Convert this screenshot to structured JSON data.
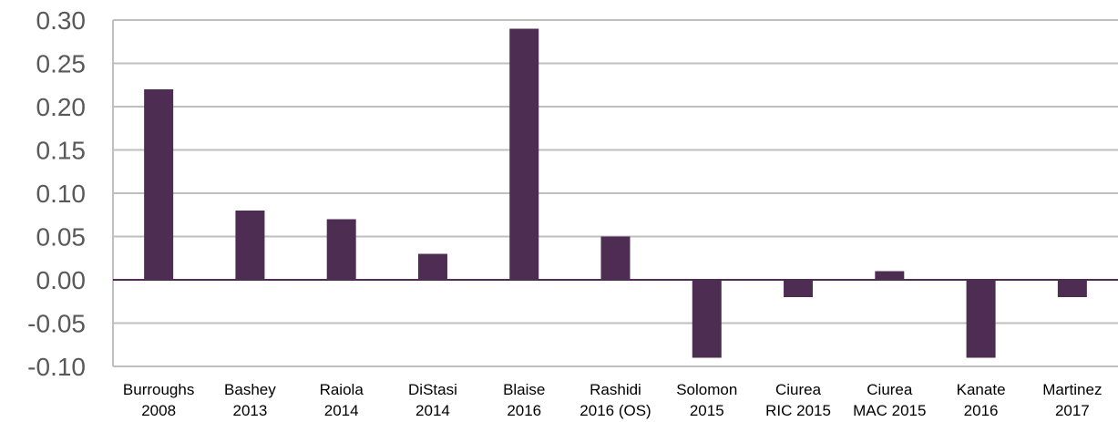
{
  "chart_data": {
    "type": "bar",
    "title": "",
    "xlabel": "",
    "ylabel": "",
    "categories": [
      [
        "Burroughs",
        "2008"
      ],
      [
        "Bashey",
        "2013"
      ],
      [
        "Raiola",
        "2014"
      ],
      [
        "DiStasi",
        "2014"
      ],
      [
        "Blaise",
        "2016"
      ],
      [
        "Rashidi",
        "2016 (OS)"
      ],
      [
        "Solomon",
        "2015"
      ],
      [
        "Ciurea",
        "RIC 2015"
      ],
      [
        "Ciurea",
        "MAC 2015"
      ],
      [
        "Kanate",
        "2016"
      ],
      [
        "Martinez",
        "2017"
      ]
    ],
    "values": [
      0.22,
      0.08,
      0.07,
      0.03,
      0.29,
      0.05,
      -0.09,
      -0.02,
      0.01,
      -0.09,
      -0.02
    ],
    "ylim": [
      -0.1,
      0.3
    ],
    "yticks": [
      "0.30",
      "0.25",
      "0.20",
      "0.15",
      "0.10",
      "0.05",
      "0.00",
      "-0.05",
      "-0.10"
    ],
    "bar_color": "#4e2d53",
    "grid": true,
    "legend": "none"
  }
}
